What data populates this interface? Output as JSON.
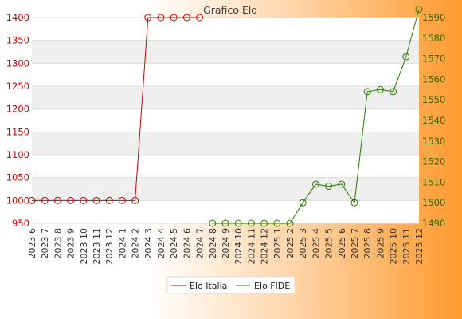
{
  "chart_data": {
    "type": "line",
    "title": "Grafico Elo",
    "categories": [
      "2023 6",
      "2023 7",
      "2023 8",
      "2023 9",
      "2023 10",
      "2023 11",
      "2023 12",
      "2024 1",
      "2024 2",
      "2024 3",
      "2024 4",
      "2024 5",
      "2024 6",
      "2024 7",
      "2024 8",
      "2024 9",
      "2024 10",
      "2024 11",
      "2024 12",
      "2025 1",
      "2025 2",
      "2025 3",
      "2025 4",
      "2025 5",
      "2025 6",
      "2025 7",
      "2025 8",
      "2025 9",
      "2025 10",
      "2025 11",
      "2025 12"
    ],
    "series": [
      {
        "name": "Elo Italia",
        "axis": "left",
        "color": "#cc0000",
        "values": [
          1000,
          1000,
          1000,
          1000,
          1000,
          1000,
          1000,
          1000,
          1000,
          1400,
          1400,
          1400,
          1400,
          1400,
          null,
          null,
          null,
          null,
          null,
          null,
          null,
          null,
          null,
          null,
          null,
          null,
          null,
          null,
          null,
          null,
          null
        ]
      },
      {
        "name": "Elo FIDE",
        "axis": "right",
        "color": "#2b7a00",
        "values": [
          null,
          null,
          null,
          null,
          null,
          null,
          null,
          null,
          null,
          null,
          null,
          null,
          null,
          null,
          1490,
          1490,
          1490,
          1490,
          1490,
          1490,
          1490,
          1500,
          1509,
          1508,
          1509,
          1500,
          1554,
          1555,
          1554,
          1571,
          1594
        ]
      }
    ],
    "y_left": {
      "min": 950,
      "max": 1400,
      "ticks": [
        950,
        1000,
        1050,
        1100,
        1150,
        1200,
        1250,
        1300,
        1350,
        1400
      ]
    },
    "y_right": {
      "min": 1490,
      "max": 1590,
      "ticks": [
        1490,
        1500,
        1510,
        1520,
        1530,
        1540,
        1550,
        1560,
        1570,
        1580,
        1590
      ]
    },
    "grid": true,
    "legend": "bottom-center",
    "colors": {
      "left_axis": "#cc0000",
      "right_axis": "#2b6b00"
    }
  }
}
